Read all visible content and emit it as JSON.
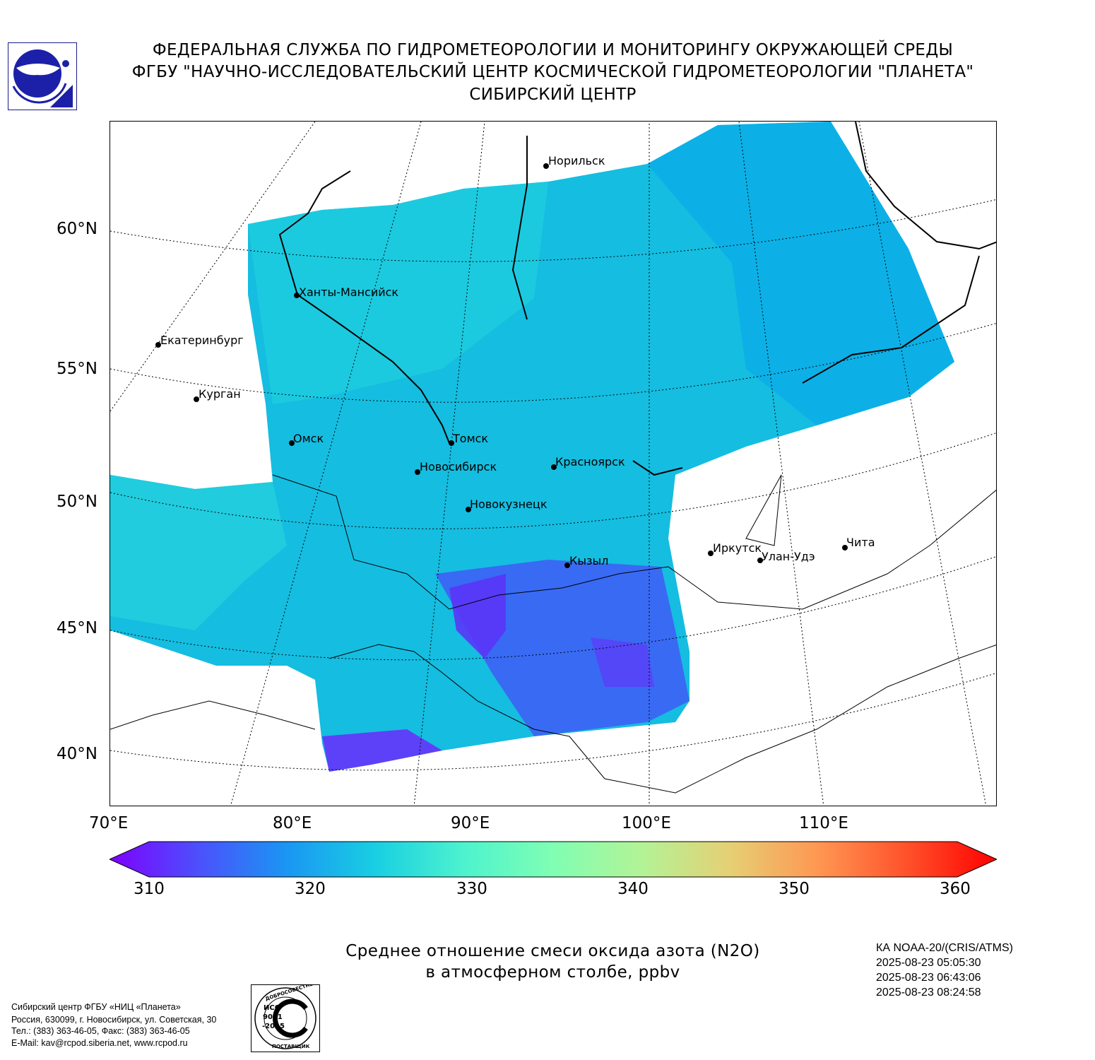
{
  "header": {
    "line1": "ФЕДЕРАЛЬНАЯ СЛУЖБА ПО ГИДРОМЕТЕОРОЛОГИИ И МОНИТОРИНГУ ОКРУЖАЮЩЕЙ СРЕДЫ",
    "line2": "ФГБУ \"НАУЧНО-ИССЛЕДОВАТЕЛЬСКИЙ ЦЕНТР КОСМИЧЕСКОЙ ГИДРОМЕТЕОРОЛОГИИ \"ПЛАНЕТА\"",
    "line3": "СИБИРСКИЙ ЦЕНТР"
  },
  "map": {
    "lat_labels": [
      "60°N",
      "55°N",
      "50°N",
      "45°N",
      "40°N"
    ],
    "lon_labels": [
      "70°E",
      "80°E",
      "90°E",
      "100°E",
      "110°E"
    ],
    "cities": [
      {
        "name": "Норильск"
      },
      {
        "name": "Ханты-Мансийск"
      },
      {
        "name": "Екатеринбург"
      },
      {
        "name": "Курган"
      },
      {
        "name": "Омск"
      },
      {
        "name": "Томск"
      },
      {
        "name": "Новосибирск"
      },
      {
        "name": "Красноярск"
      },
      {
        "name": "Новокузнецк"
      },
      {
        "name": "Кызыл"
      },
      {
        "name": "Иркутск"
      },
      {
        "name": "Улан-Удэ"
      },
      {
        "name": "Чита"
      }
    ]
  },
  "colorbar": {
    "ticks": [
      "310",
      "320",
      "330",
      "340",
      "350",
      "360"
    ],
    "min": 310,
    "max": 360,
    "colors": [
      "#7f00ff",
      "#4c50fc",
      "#1a96f3",
      "#19cfe2",
      "#4df3ce",
      "#80feb3",
      "#b3f396",
      "#e6cf74",
      "#ff9652",
      "#ff502a",
      "#ff0000"
    ]
  },
  "caption": {
    "line1": "Среднее отношение смеси оксида азота (N2O)",
    "line2": "в атмосферном столбе, ppbv"
  },
  "satellite": {
    "name": "КА NOAA-20/(CRIS/ATMS)",
    "times": [
      "2025-08-23 05:05:30",
      "2025-08-23 06:43:06",
      "2025-08-23 08:24:58"
    ]
  },
  "footer": {
    "line1": "Сибирский центр ФГБУ «НИЦ «Планета»",
    "line2": "Россия, 630099, г. Новосибирск, ул. Советская, 30",
    "line3": "Тел.: (383) 363-46-05, Факс: (383) 363-46-05",
    "line4": "E-Mail: kav@rcpod.siberia.net, www.rcpod.ru"
  },
  "iso_badge": {
    "top_text": "ДОБРОСОВЕСТНЫЙ",
    "center_text": "ИСО 9001 -2015",
    "bottom_text": "ПОСТАВЩИК"
  }
}
